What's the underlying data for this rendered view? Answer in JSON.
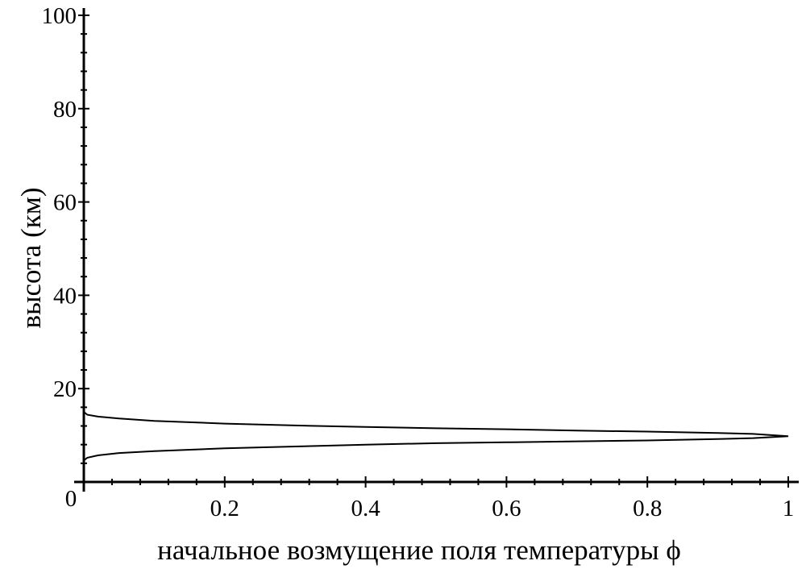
{
  "chart_data": {
    "type": "line",
    "title": "",
    "xlabel": "начальное возмущение поля температуры ϕ",
    "ylabel": "высота (км)",
    "xlim": [
      0,
      1
    ],
    "ylim": [
      0,
      100
    ],
    "x_ticks": [
      0,
      0.2,
      0.4,
      0.6,
      0.8,
      1
    ],
    "x_tick_labels": [
      "0",
      "0.2",
      "0.4",
      "0.6",
      "0.8",
      "1"
    ],
    "y_ticks": [
      20,
      40,
      60,
      80,
      100
    ],
    "y_tick_labels": [
      "20",
      "40",
      "60",
      "80",
      "100"
    ],
    "x_minor_step": 0.04,
    "y_minor_step": 4,
    "grid": false,
    "legend": "none",
    "line_color": "#000000",
    "series": [
      {
        "points": [
          [
            0,
            4.6
          ],
          [
            0.005,
            5.2
          ],
          [
            0.02,
            5.7
          ],
          [
            0.05,
            6.2
          ],
          [
            0.1,
            6.6
          ],
          [
            0.2,
            7.2
          ],
          [
            0.3,
            7.6
          ],
          [
            0.4,
            8.0
          ],
          [
            0.5,
            8.3
          ],
          [
            0.6,
            8.5
          ],
          [
            0.7,
            8.7
          ],
          [
            0.8,
            8.9
          ],
          [
            0.9,
            9.2
          ],
          [
            0.95,
            9.4
          ],
          [
            1,
            9.8
          ],
          [
            0.95,
            10.3
          ],
          [
            0.9,
            10.5
          ],
          [
            0.8,
            10.8
          ],
          [
            0.7,
            11.0
          ],
          [
            0.6,
            11.3
          ],
          [
            0.5,
            11.5
          ],
          [
            0.4,
            11.8
          ],
          [
            0.3,
            12.1
          ],
          [
            0.2,
            12.5
          ],
          [
            0.1,
            13.1
          ],
          [
            0.05,
            13.6
          ],
          [
            0.02,
            14.0
          ],
          [
            0.005,
            14.4
          ],
          [
            0,
            15.0
          ]
        ]
      }
    ]
  }
}
